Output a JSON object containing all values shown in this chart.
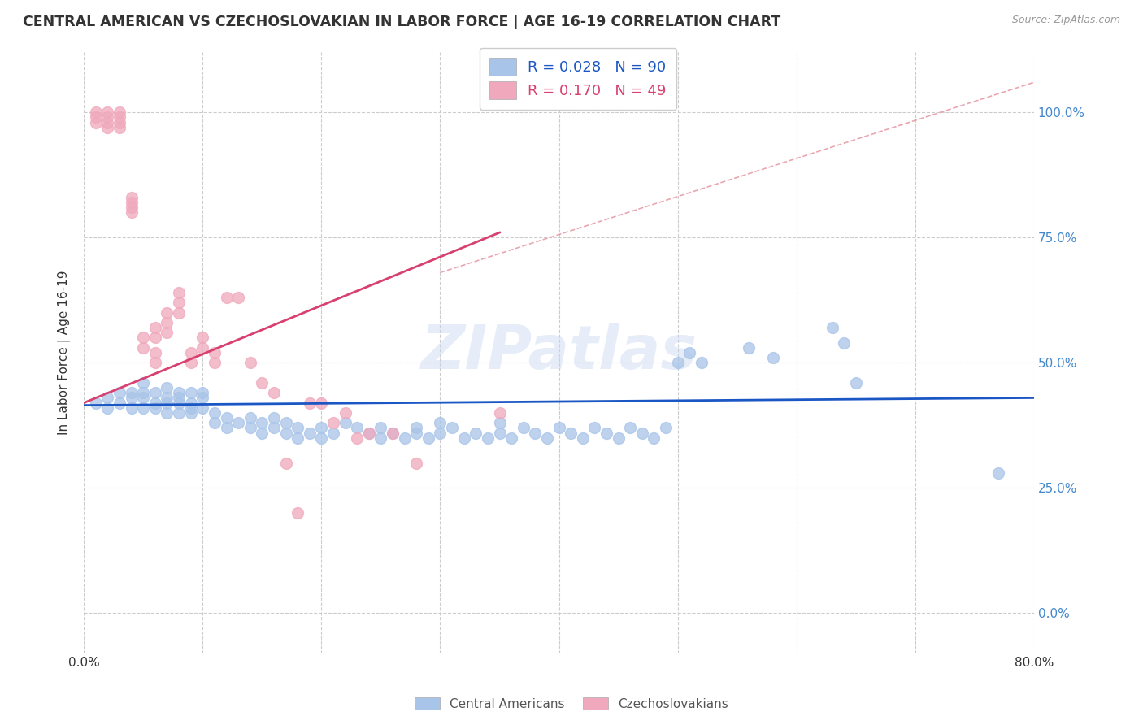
{
  "title": "CENTRAL AMERICAN VS CZECHOSLOVAKIAN IN LABOR FORCE | AGE 16-19 CORRELATION CHART",
  "source": "Source: ZipAtlas.com",
  "ylabel": "In Labor Force | Age 16-19",
  "xlim": [
    0.0,
    0.8
  ],
  "ylim": [
    -0.08,
    1.12
  ],
  "ytick_values": [
    0.0,
    0.25,
    0.5,
    0.75,
    1.0
  ],
  "xtick_values": [
    0.0,
    0.1,
    0.2,
    0.3,
    0.4,
    0.5,
    0.6,
    0.7,
    0.8
  ],
  "legend_R_blue": "0.028",
  "legend_N_blue": "90",
  "legend_R_pink": "0.170",
  "legend_N_pink": "49",
  "blue_color": "#a8c4e8",
  "pink_color": "#f0a8bc",
  "blue_line_color": "#1a56c4",
  "pink_line_color": "#d84070",
  "dashed_line_color": "#e08090",
  "watermark": "ZIPatlas",
  "blue_x": [
    0.01,
    0.02,
    0.02,
    0.03,
    0.03,
    0.04,
    0.04,
    0.04,
    0.05,
    0.05,
    0.05,
    0.05,
    0.06,
    0.06,
    0.06,
    0.07,
    0.07,
    0.07,
    0.07,
    0.08,
    0.08,
    0.08,
    0.08,
    0.09,
    0.09,
    0.09,
    0.09,
    0.1,
    0.1,
    0.1,
    0.11,
    0.11,
    0.12,
    0.12,
    0.13,
    0.14,
    0.14,
    0.15,
    0.15,
    0.16,
    0.16,
    0.17,
    0.17,
    0.18,
    0.18,
    0.19,
    0.2,
    0.2,
    0.21,
    0.22,
    0.23,
    0.24,
    0.25,
    0.25,
    0.26,
    0.27,
    0.28,
    0.28,
    0.29,
    0.3,
    0.3,
    0.31,
    0.32,
    0.33,
    0.34,
    0.35,
    0.35,
    0.36,
    0.37,
    0.38,
    0.39,
    0.4,
    0.41,
    0.42,
    0.43,
    0.44,
    0.45,
    0.46,
    0.47,
    0.48,
    0.49,
    0.5,
    0.51,
    0.52,
    0.56,
    0.58,
    0.63,
    0.64,
    0.65,
    0.77
  ],
  "blue_y": [
    0.42,
    0.43,
    0.41,
    0.44,
    0.42,
    0.43,
    0.41,
    0.44,
    0.44,
    0.46,
    0.43,
    0.41,
    0.42,
    0.44,
    0.41,
    0.45,
    0.43,
    0.42,
    0.4,
    0.44,
    0.42,
    0.4,
    0.43,
    0.42,
    0.44,
    0.41,
    0.4,
    0.43,
    0.41,
    0.44,
    0.38,
    0.4,
    0.37,
    0.39,
    0.38,
    0.37,
    0.39,
    0.36,
    0.38,
    0.37,
    0.39,
    0.36,
    0.38,
    0.35,
    0.37,
    0.36,
    0.35,
    0.37,
    0.36,
    0.38,
    0.37,
    0.36,
    0.35,
    0.37,
    0.36,
    0.35,
    0.37,
    0.36,
    0.35,
    0.38,
    0.36,
    0.37,
    0.35,
    0.36,
    0.35,
    0.38,
    0.36,
    0.35,
    0.37,
    0.36,
    0.35,
    0.37,
    0.36,
    0.35,
    0.37,
    0.36,
    0.35,
    0.37,
    0.36,
    0.35,
    0.37,
    0.5,
    0.52,
    0.5,
    0.53,
    0.51,
    0.57,
    0.54,
    0.46,
    0.28
  ],
  "pink_x": [
    0.01,
    0.01,
    0.01,
    0.02,
    0.02,
    0.02,
    0.02,
    0.03,
    0.03,
    0.03,
    0.03,
    0.04,
    0.04,
    0.04,
    0.04,
    0.05,
    0.05,
    0.06,
    0.06,
    0.06,
    0.06,
    0.07,
    0.07,
    0.07,
    0.08,
    0.08,
    0.08,
    0.09,
    0.09,
    0.1,
    0.1,
    0.11,
    0.11,
    0.12,
    0.13,
    0.14,
    0.15,
    0.16,
    0.17,
    0.18,
    0.19,
    0.2,
    0.21,
    0.22,
    0.23,
    0.24,
    0.26,
    0.28,
    0.35
  ],
  "pink_y": [
    1.0,
    0.99,
    0.98,
    1.0,
    0.99,
    0.98,
    0.97,
    1.0,
    0.99,
    0.98,
    0.97,
    0.83,
    0.82,
    0.81,
    0.8,
    0.55,
    0.53,
    0.57,
    0.55,
    0.52,
    0.5,
    0.6,
    0.58,
    0.56,
    0.64,
    0.62,
    0.6,
    0.5,
    0.52,
    0.55,
    0.53,
    0.5,
    0.52,
    0.63,
    0.63,
    0.5,
    0.46,
    0.44,
    0.3,
    0.2,
    0.42,
    0.42,
    0.38,
    0.4,
    0.35,
    0.36,
    0.36,
    0.3,
    0.4
  ]
}
